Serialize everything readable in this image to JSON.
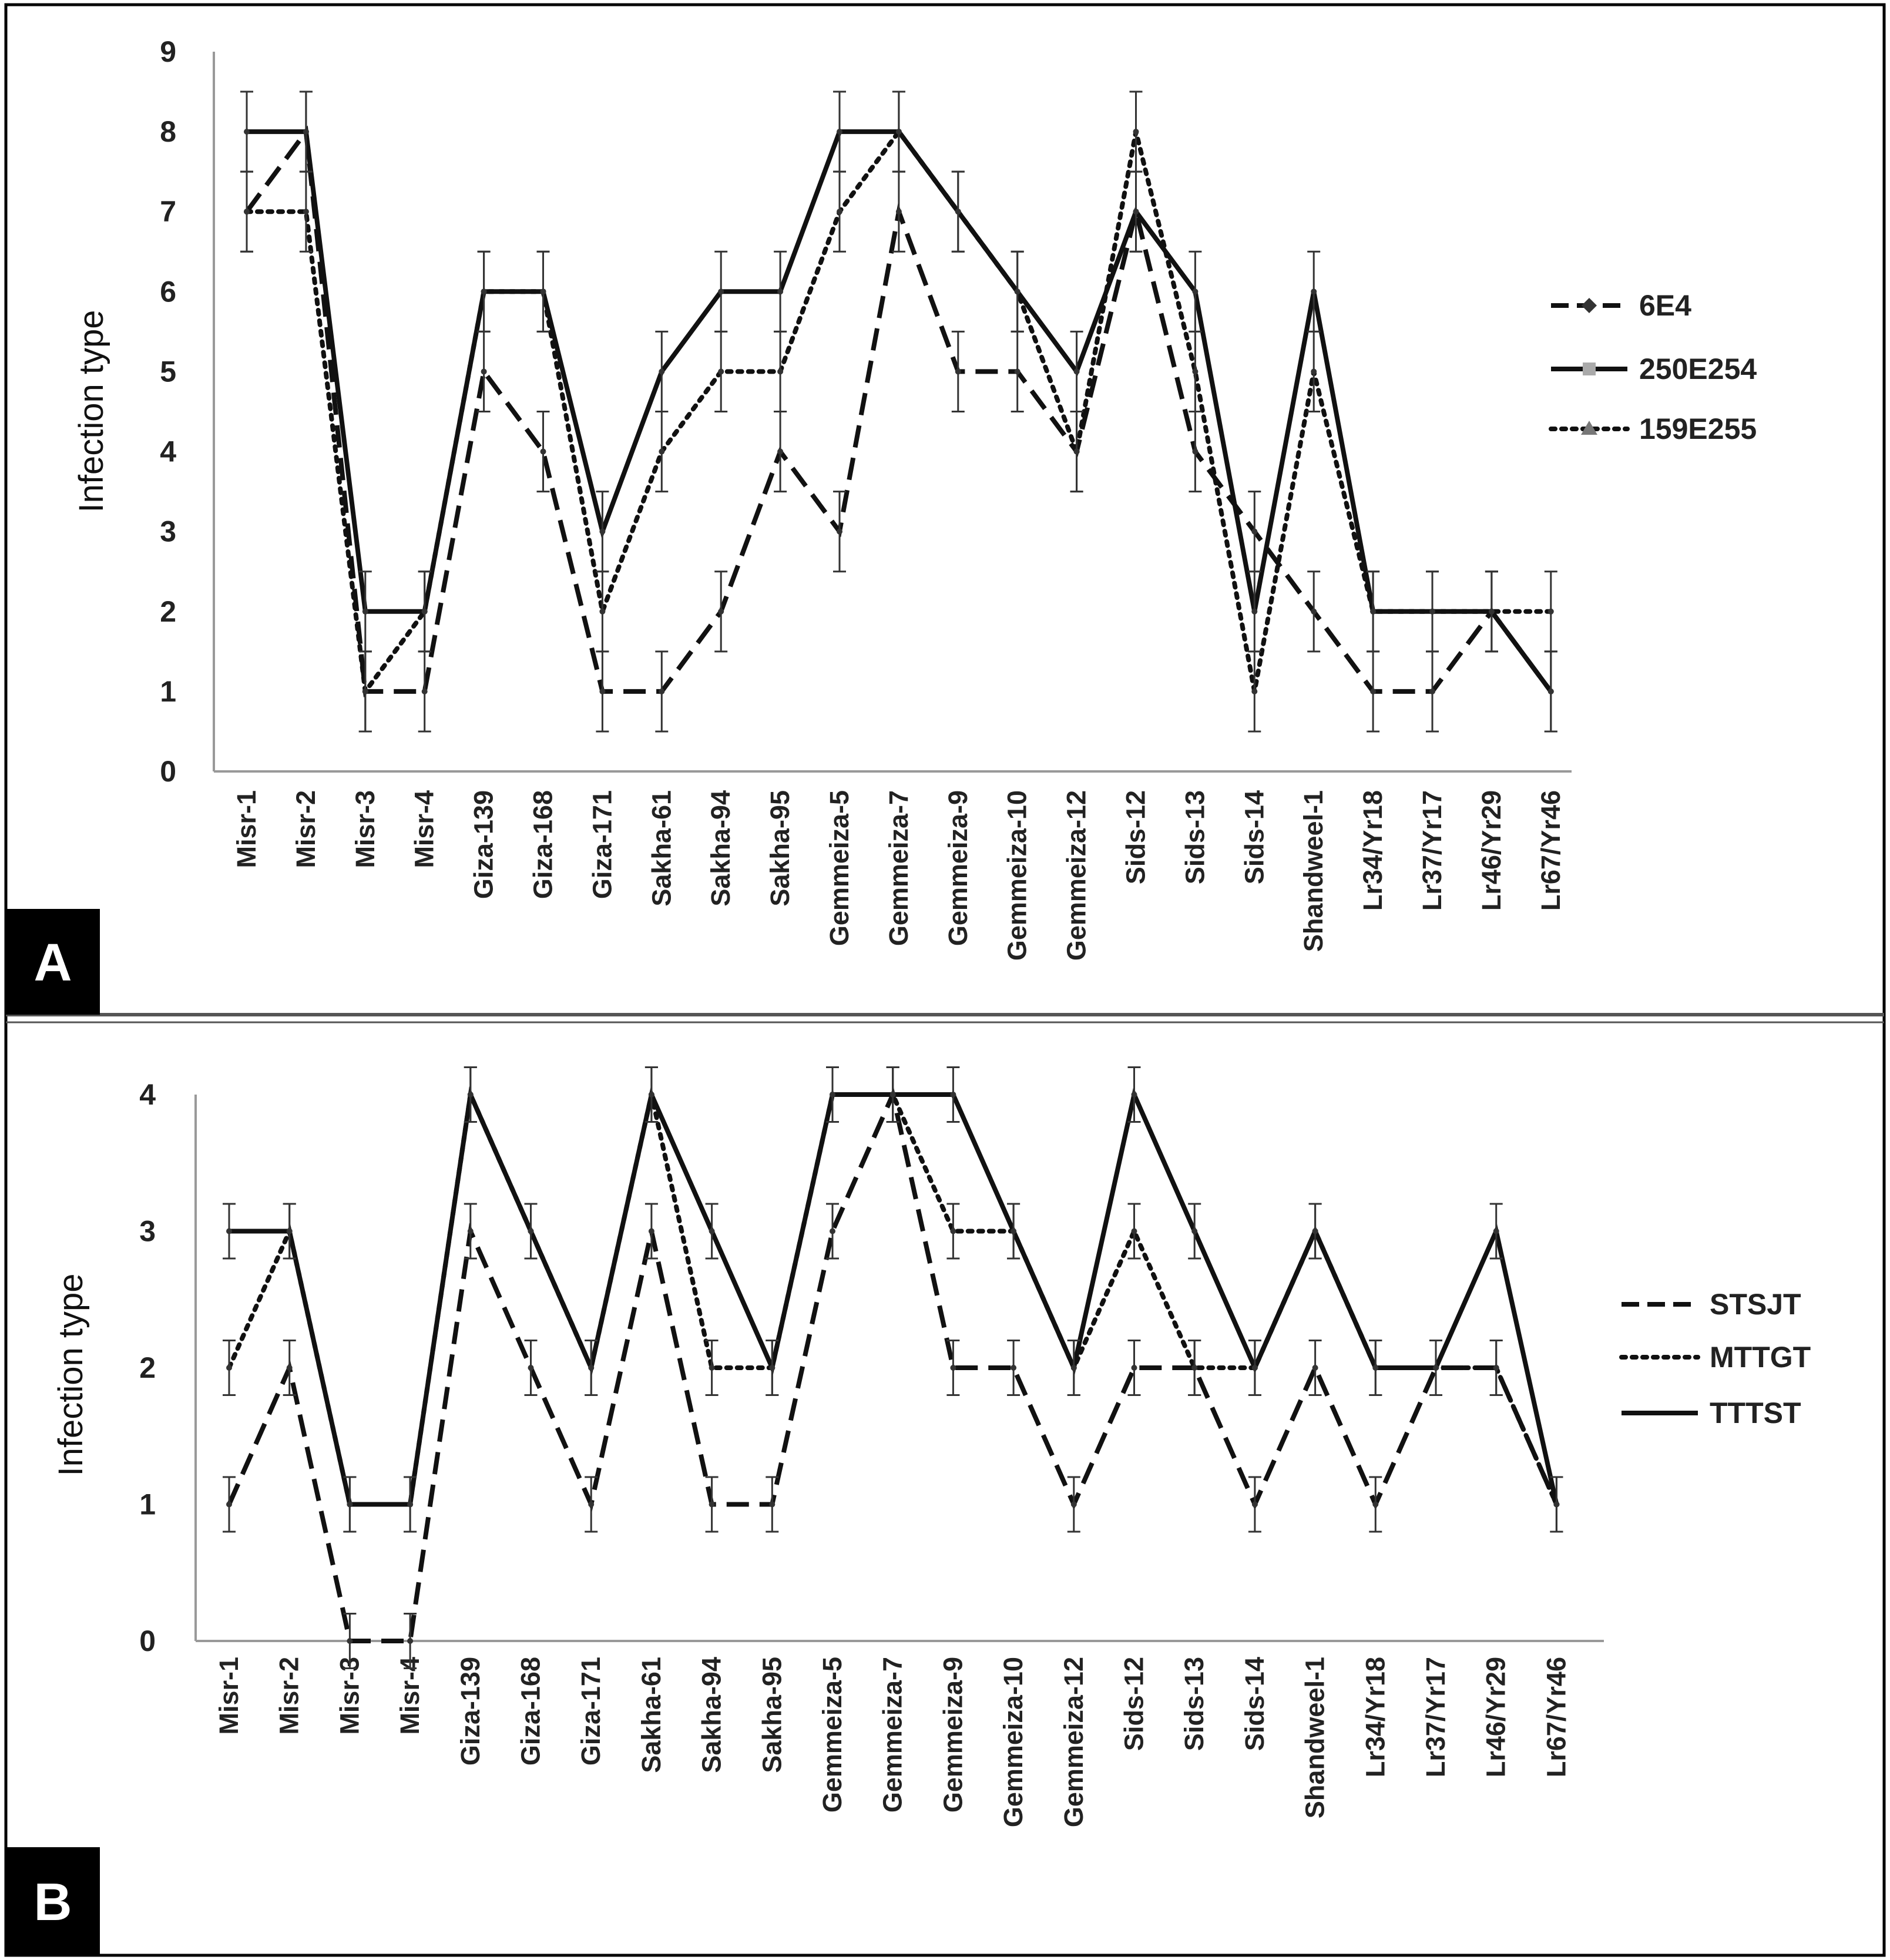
{
  "chart_data": [
    {
      "panel_label": "A",
      "type": "line",
      "ylabel": "Infection type",
      "ylim": [
        0,
        9
      ],
      "yticks": [
        0,
        1,
        2,
        3,
        4,
        5,
        6,
        7,
        8,
        9
      ],
      "error_bar": 0.5,
      "legend_position": "right",
      "categories": [
        "Misr-1",
        "Misr-2",
        "Misr-3",
        "Misr-4",
        "Giza-139",
        "Giza-168",
        "Giza-171",
        "Sakha-61",
        "Sakha-94",
        "Sakha-95",
        "Gemmeiza-5",
        "Gemmeiza-7",
        "Gemmeiza-9",
        "Gemmeiza-10",
        "Gemmeiza-12",
        "Sids-12",
        "Sids-13",
        "Sids-14",
        "Shandweel-1",
        "Lr34/Yr18",
        "Lr37/Yr17",
        "Lr46/Yr29",
        "Lr67/Yr46"
      ],
      "series": [
        {
          "name": "6E4",
          "style": "dashed",
          "marker": "diamond",
          "values": [
            7,
            8,
            1,
            1,
            5,
            4,
            1,
            1,
            2,
            4,
            3,
            7,
            5,
            5,
            4,
            7,
            4,
            3,
            2,
            1,
            1,
            2,
            1
          ]
        },
        {
          "name": "250E254",
          "style": "solid",
          "marker": "square",
          "values": [
            8,
            8,
            2,
            2,
            6,
            6,
            3,
            5,
            6,
            6,
            8,
            8,
            7,
            6,
            5,
            7,
            6,
            2,
            6,
            2,
            2,
            2,
            1
          ]
        },
        {
          "name": "159E255",
          "style": "dotted",
          "marker": "triangle",
          "values": [
            7,
            7,
            1,
            2,
            6,
            6,
            2,
            4,
            5,
            5,
            7,
            8,
            7,
            6,
            4,
            8,
            5,
            1,
            5,
            2,
            2,
            2,
            2
          ]
        }
      ]
    },
    {
      "panel_label": "B",
      "type": "line",
      "ylabel": "Infection type",
      "ylim": [
        0,
        4
      ],
      "yticks": [
        0,
        1,
        2,
        3,
        4
      ],
      "error_bar": 0.2,
      "legend_position": "right",
      "categories": [
        "Misr-1",
        "Misr-2",
        "Misr-3",
        "Misr-4",
        "Giza-139",
        "Giza-168",
        "Giza-171",
        "Sakha-61",
        "Sakha-94",
        "Sakha-95",
        "Gemmeiza-5",
        "Gemmeiza-7",
        "Gemmeiza-9",
        "Gemmeiza-10",
        "Gemmeiza-12",
        "Sids-12",
        "Sids-13",
        "Sids-14",
        "Shandweel-1",
        "Lr34/Yr18",
        "Lr37/Yr17",
        "Lr46/Yr29",
        "Lr67/Yr46"
      ],
      "series": [
        {
          "name": "STSJT",
          "style": "dashed",
          "values": [
            1,
            2,
            0,
            0,
            3,
            2,
            1,
            3,
            1,
            1,
            3,
            4,
            2,
            2,
            1,
            2,
            2,
            1,
            2,
            1,
            2,
            2,
            1
          ]
        },
        {
          "name": "MTTGT",
          "style": "dotted",
          "values": [
            2,
            3,
            1,
            1,
            4,
            3,
            2,
            4,
            2,
            2,
            4,
            4,
            3,
            3,
            2,
            3,
            2,
            2,
            3,
            2,
            2,
            2,
            1
          ]
        },
        {
          "name": "TTTST",
          "style": "solid",
          "values": [
            3,
            3,
            1,
            1,
            4,
            3,
            2,
            4,
            3,
            2,
            4,
            4,
            4,
            3,
            2,
            4,
            3,
            2,
            3,
            2,
            2,
            3,
            1
          ]
        }
      ]
    }
  ]
}
